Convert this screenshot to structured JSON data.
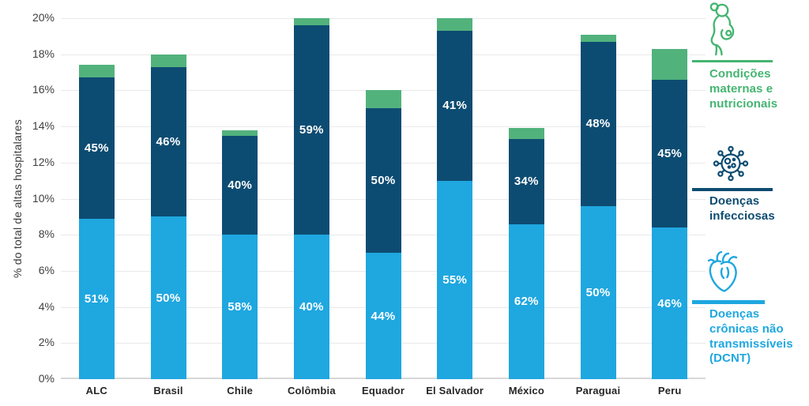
{
  "colors": {
    "dcnt_blue": "#1FA7E0",
    "infectious_navy": "#0D4C72",
    "maternal_green": "#52B27C",
    "legend_green": "#44B571",
    "grid": "#e9e9e9",
    "axis_text": "#3f3f3f"
  },
  "chart_data": {
    "type": "bar",
    "stacked": true,
    "title": "",
    "ylabel": "% do total de altas hospitalares",
    "xlabel": "",
    "ylim": [
      0,
      20
    ],
    "ytick_step": 2,
    "ytick_suffix": "%",
    "grid": true,
    "legend_position": "right",
    "categories": [
      "ALC",
      "Brasil",
      "Chile",
      "Colômbia",
      "Equador",
      "El Salvador",
      "México",
      "Paraguai",
      "Peru"
    ],
    "series": [
      {
        "name": "Doenças crônicas não transmissíveis (DCNT)",
        "color": "#1FA7E0",
        "values": [
          8.9,
          9.0,
          8.0,
          8.0,
          7.0,
          11.0,
          8.6,
          9.6,
          8.4
        ],
        "labels": [
          "51%",
          "50%",
          "58%",
          "40%",
          "44%",
          "55%",
          "62%",
          "50%",
          "46%"
        ]
      },
      {
        "name": "Doenças infecciosas",
        "color": "#0D4C72",
        "values": [
          7.8,
          8.3,
          5.5,
          11.6,
          8.0,
          8.3,
          4.7,
          9.1,
          8.2
        ],
        "labels": [
          "45%",
          "46%",
          "40%",
          "59%",
          "50%",
          "41%",
          "34%",
          "48%",
          "45%"
        ]
      },
      {
        "name": "Condições maternas e nutricionais",
        "color": "#52B27C",
        "values": [
          0.7,
          0.7,
          0.3,
          0.4,
          1.0,
          0.7,
          0.6,
          0.4,
          1.7
        ],
        "labels": [
          "",
          "",
          "",
          "",
          "",
          "",
          "",
          "",
          ""
        ]
      }
    ],
    "bar_totals": [
      17.4,
      18.0,
      13.8,
      20.0,
      16.0,
      20.0,
      13.9,
      19.1,
      18.3
    ]
  },
  "legend": {
    "items": [
      {
        "id": "maternas",
        "label": "Condições maternas e nutricionais",
        "color": "#44B571",
        "icon": "pregnant-woman-icon"
      },
      {
        "id": "infecciosas",
        "label": "Doenças infecciosas",
        "color": "#0D4C72",
        "icon": "virus-icon"
      },
      {
        "id": "dcnt",
        "label": "Doenças crônicas não transmissíveis (DCNT)",
        "color": "#1FA7E0",
        "icon": "heart-icon"
      }
    ]
  }
}
